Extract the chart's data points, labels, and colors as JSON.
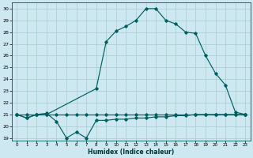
{
  "xlabel": "Humidex (Indice chaleur)",
  "bg_color": "#cde8f0",
  "grid_color": "#a8cccc",
  "line_color": "#006060",
  "xlim": [
    -0.5,
    23.5
  ],
  "ylim": [
    18.8,
    30.5
  ],
  "xticks": [
    0,
    1,
    2,
    3,
    4,
    5,
    6,
    7,
    8,
    9,
    10,
    11,
    12,
    13,
    14,
    15,
    16,
    17,
    18,
    19,
    20,
    21,
    22,
    23
  ],
  "yticks": [
    19,
    20,
    21,
    22,
    23,
    24,
    25,
    26,
    27,
    28,
    29,
    30
  ],
  "line_wavy_x": [
    0,
    1,
    2,
    3,
    4,
    5,
    6,
    7,
    8,
    9,
    10,
    11,
    12,
    13,
    14,
    15,
    16,
    17,
    18,
    19,
    20,
    21,
    22,
    23
  ],
  "line_wavy_y": [
    21.0,
    20.7,
    21.0,
    21.1,
    20.4,
    19.0,
    19.5,
    19.0,
    20.5,
    20.5,
    20.6,
    20.6,
    20.7,
    20.7,
    20.8,
    20.8,
    20.9,
    20.9,
    21.0,
    21.0,
    21.0,
    21.0,
    21.0,
    21.0
  ],
  "line_flat_x": [
    0,
    1,
    2,
    3,
    4,
    5,
    6,
    7,
    8,
    9,
    10,
    11,
    12,
    13,
    14,
    15,
    16,
    17,
    18,
    19,
    20,
    21,
    22,
    23
  ],
  "line_flat_y": [
    21.0,
    21.0,
    21.0,
    21.0,
    21.0,
    21.0,
    21.0,
    21.0,
    21.0,
    21.0,
    21.0,
    21.0,
    21.0,
    21.0,
    21.0,
    21.0,
    21.0,
    21.0,
    21.0,
    21.0,
    21.0,
    21.0,
    21.0,
    21.0
  ],
  "line_top_x": [
    0,
    1,
    2,
    3,
    8,
    9,
    10,
    11,
    12,
    13,
    14,
    15,
    16,
    17,
    18,
    19,
    20,
    21,
    22,
    23
  ],
  "line_top_y": [
    21.0,
    20.7,
    21.0,
    21.0,
    23.2,
    27.2,
    28.1,
    28.5,
    29.0,
    30.0,
    30.0,
    29.0,
    28.7,
    28.0,
    27.9,
    26.0,
    24.5,
    23.5,
    21.2,
    21.0
  ]
}
